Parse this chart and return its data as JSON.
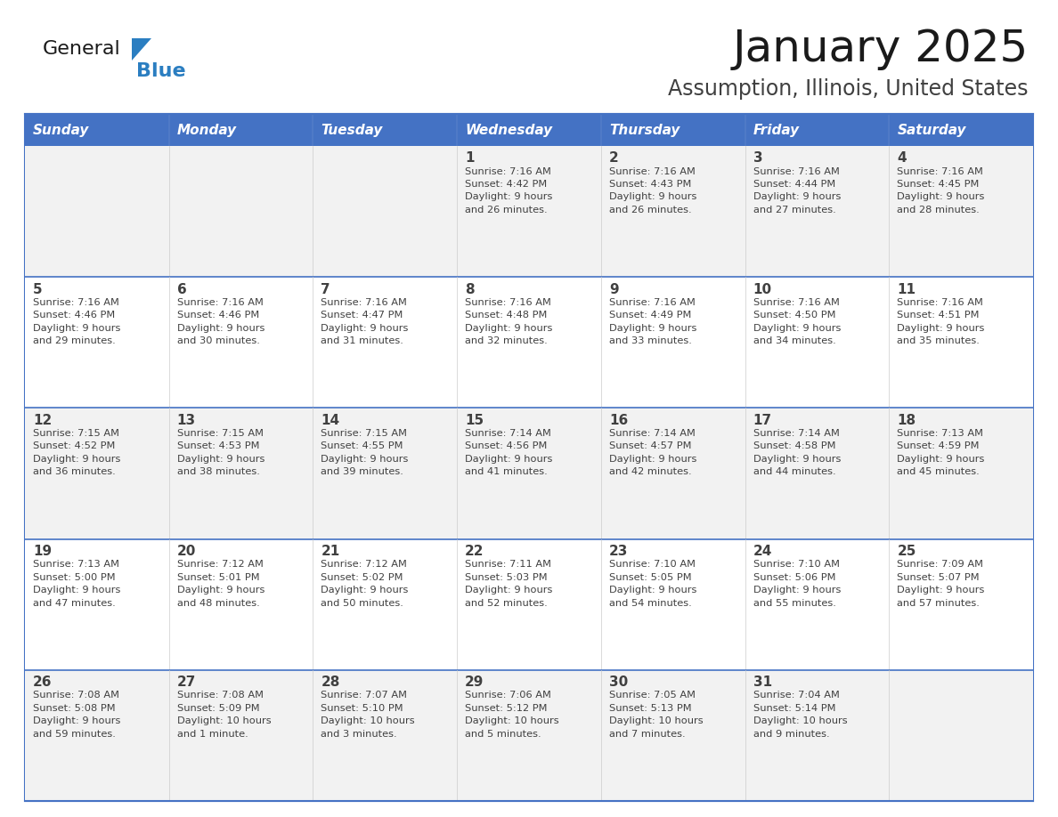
{
  "title": "January 2025",
  "subtitle": "Assumption, Illinois, United States",
  "days_of_week": [
    "Sunday",
    "Monday",
    "Tuesday",
    "Wednesday",
    "Thursday",
    "Friday",
    "Saturday"
  ],
  "header_bg": "#4472C4",
  "header_text_color": "#FFFFFF",
  "cell_bg_odd": "#F2F2F2",
  "cell_bg_even": "#FFFFFF",
  "cell_text_color": "#404040",
  "row_border_color": "#4472C4",
  "col_border_color": "#CCCCCC",
  "title_color": "#1a1a1a",
  "subtitle_color": "#404040",
  "logo_general_color": "#1a1a1a",
  "logo_blue_color": "#2B7EC1",
  "logo_triangle_color": "#2B7EC1",
  "weeks": [
    [
      {
        "day": null,
        "sunrise": null,
        "sunset": null,
        "daylight": null
      },
      {
        "day": null,
        "sunrise": null,
        "sunset": null,
        "daylight": null
      },
      {
        "day": null,
        "sunrise": null,
        "sunset": null,
        "daylight": null
      },
      {
        "day": 1,
        "sunrise": "7:16 AM",
        "sunset": "4:42 PM",
        "daylight": "9 hours and 26 minutes."
      },
      {
        "day": 2,
        "sunrise": "7:16 AM",
        "sunset": "4:43 PM",
        "daylight": "9 hours and 26 minutes."
      },
      {
        "day": 3,
        "sunrise": "7:16 AM",
        "sunset": "4:44 PM",
        "daylight": "9 hours and 27 minutes."
      },
      {
        "day": 4,
        "sunrise": "7:16 AM",
        "sunset": "4:45 PM",
        "daylight": "9 hours and 28 minutes."
      }
    ],
    [
      {
        "day": 5,
        "sunrise": "7:16 AM",
        "sunset": "4:46 PM",
        "daylight": "9 hours and 29 minutes."
      },
      {
        "day": 6,
        "sunrise": "7:16 AM",
        "sunset": "4:46 PM",
        "daylight": "9 hours and 30 minutes."
      },
      {
        "day": 7,
        "sunrise": "7:16 AM",
        "sunset": "4:47 PM",
        "daylight": "9 hours and 31 minutes."
      },
      {
        "day": 8,
        "sunrise": "7:16 AM",
        "sunset": "4:48 PM",
        "daylight": "9 hours and 32 minutes."
      },
      {
        "day": 9,
        "sunrise": "7:16 AM",
        "sunset": "4:49 PM",
        "daylight": "9 hours and 33 minutes."
      },
      {
        "day": 10,
        "sunrise": "7:16 AM",
        "sunset": "4:50 PM",
        "daylight": "9 hours and 34 minutes."
      },
      {
        "day": 11,
        "sunrise": "7:16 AM",
        "sunset": "4:51 PM",
        "daylight": "9 hours and 35 minutes."
      }
    ],
    [
      {
        "day": 12,
        "sunrise": "7:15 AM",
        "sunset": "4:52 PM",
        "daylight": "9 hours and 36 minutes."
      },
      {
        "day": 13,
        "sunrise": "7:15 AM",
        "sunset": "4:53 PM",
        "daylight": "9 hours and 38 minutes."
      },
      {
        "day": 14,
        "sunrise": "7:15 AM",
        "sunset": "4:55 PM",
        "daylight": "9 hours and 39 minutes."
      },
      {
        "day": 15,
        "sunrise": "7:14 AM",
        "sunset": "4:56 PM",
        "daylight": "9 hours and 41 minutes."
      },
      {
        "day": 16,
        "sunrise": "7:14 AM",
        "sunset": "4:57 PM",
        "daylight": "9 hours and 42 minutes."
      },
      {
        "day": 17,
        "sunrise": "7:14 AM",
        "sunset": "4:58 PM",
        "daylight": "9 hours and 44 minutes."
      },
      {
        "day": 18,
        "sunrise": "7:13 AM",
        "sunset": "4:59 PM",
        "daylight": "9 hours and 45 minutes."
      }
    ],
    [
      {
        "day": 19,
        "sunrise": "7:13 AM",
        "sunset": "5:00 PM",
        "daylight": "9 hours and 47 minutes."
      },
      {
        "day": 20,
        "sunrise": "7:12 AM",
        "sunset": "5:01 PM",
        "daylight": "9 hours and 48 minutes."
      },
      {
        "day": 21,
        "sunrise": "7:12 AM",
        "sunset": "5:02 PM",
        "daylight": "9 hours and 50 minutes."
      },
      {
        "day": 22,
        "sunrise": "7:11 AM",
        "sunset": "5:03 PM",
        "daylight": "9 hours and 52 minutes."
      },
      {
        "day": 23,
        "sunrise": "7:10 AM",
        "sunset": "5:05 PM",
        "daylight": "9 hours and 54 minutes."
      },
      {
        "day": 24,
        "sunrise": "7:10 AM",
        "sunset": "5:06 PM",
        "daylight": "9 hours and 55 minutes."
      },
      {
        "day": 25,
        "sunrise": "7:09 AM",
        "sunset": "5:07 PM",
        "daylight": "9 hours and 57 minutes."
      }
    ],
    [
      {
        "day": 26,
        "sunrise": "7:08 AM",
        "sunset": "5:08 PM",
        "daylight": "9 hours and 59 minutes."
      },
      {
        "day": 27,
        "sunrise": "7:08 AM",
        "sunset": "5:09 PM",
        "daylight": "10 hours and 1 minute."
      },
      {
        "day": 28,
        "sunrise": "7:07 AM",
        "sunset": "5:10 PM",
        "daylight": "10 hours and 3 minutes."
      },
      {
        "day": 29,
        "sunrise": "7:06 AM",
        "sunset": "5:12 PM",
        "daylight": "10 hours and 5 minutes."
      },
      {
        "day": 30,
        "sunrise": "7:05 AM",
        "sunset": "5:13 PM",
        "daylight": "10 hours and 7 minutes."
      },
      {
        "day": 31,
        "sunrise": "7:04 AM",
        "sunset": "5:14 PM",
        "daylight": "10 hours and 9 minutes."
      },
      {
        "day": null,
        "sunrise": null,
        "sunset": null,
        "daylight": null
      }
    ]
  ]
}
